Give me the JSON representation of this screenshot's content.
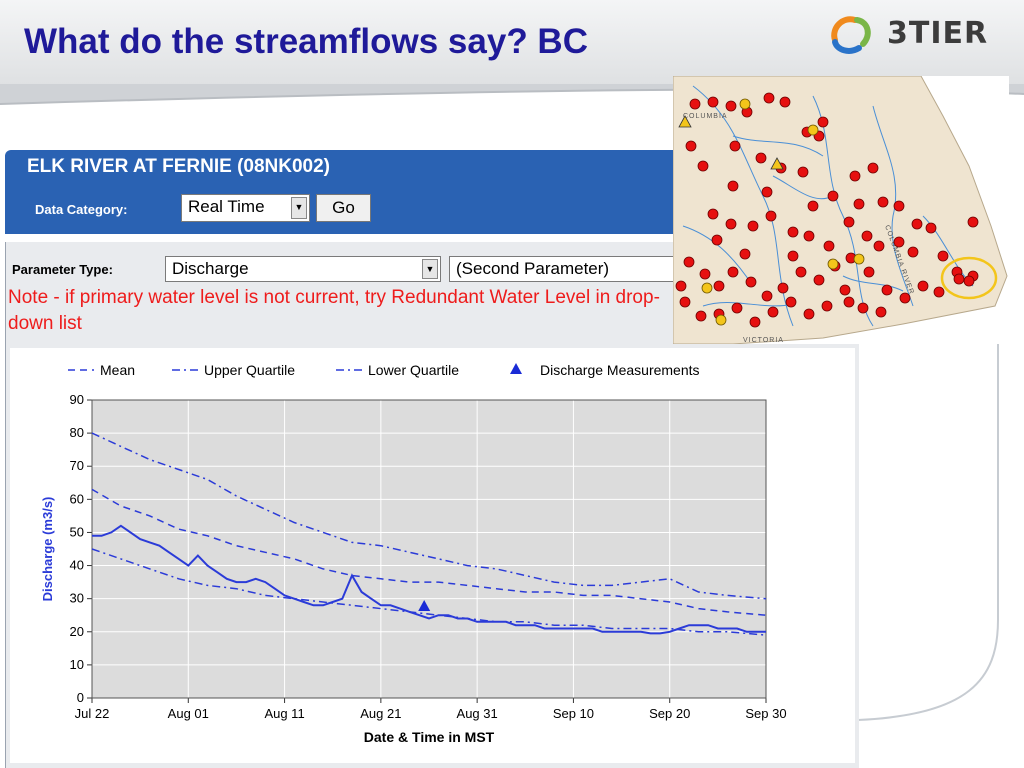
{
  "slide": {
    "title": "What do the streamflows say?  BC",
    "logo_text": "3TIER"
  },
  "station": {
    "name": "ELK RIVER AT FERNIE (08NK002)",
    "data_category_label": "Data Category:",
    "data_category_value": "Real Time",
    "go_label": "Go",
    "parameter_type_label": "Parameter Type:",
    "parameter_value": "Discharge",
    "second_parameter_value": "(Second Parameter)",
    "note": "Note - if primary water level is not current, try Redundant Water Level in drop-down list"
  },
  "map": {
    "labels": [
      "COLUMBIA",
      "VICTORIA",
      "COLUMBIA RIVER"
    ],
    "colors": {
      "land": "#efe4d0",
      "water": "#4a8fd6",
      "station": "#e61010",
      "highlight": "#f3c51b"
    }
  },
  "chart_data": {
    "type": "line",
    "title": "",
    "xlabel": "Date & Time in MST",
    "ylabel": "Discharge (m3/s)",
    "ylim": [
      0,
      90
    ],
    "yticks": [
      0,
      10,
      20,
      30,
      40,
      50,
      60,
      70,
      80,
      90
    ],
    "xticks": [
      "Jul 22",
      "Aug 01",
      "Aug 11",
      "Aug 21",
      "Aug 31",
      "Sep 10",
      "Sep 20",
      "Sep 30"
    ],
    "xlim_days": [
      0,
      70
    ],
    "grid": true,
    "legend_position": "top",
    "legend": [
      "Mean",
      "Upper Quartile",
      "Lower Quartile",
      "Discharge Measurements"
    ],
    "series": [
      {
        "name": "Mean",
        "style": "dashed",
        "color": "#2b3bd8",
        "x": [
          0,
          3,
          6,
          9,
          12,
          15,
          18,
          21,
          24,
          27,
          30,
          33,
          36,
          39,
          42,
          45,
          48,
          51,
          54,
          57,
          60,
          63,
          66,
          70
        ],
        "y": [
          63,
          58,
          55,
          51,
          49,
          46,
          44,
          42,
          39,
          37,
          36,
          35,
          35,
          34,
          33,
          32,
          32,
          31,
          31,
          30,
          29,
          27,
          26,
          25
        ]
      },
      {
        "name": "Upper Quartile",
        "style": "dashdot",
        "color": "#2b3bd8",
        "x": [
          0,
          3,
          6,
          9,
          12,
          15,
          18,
          21,
          24,
          27,
          30,
          33,
          36,
          39,
          42,
          45,
          48,
          51,
          54,
          57,
          60,
          63,
          66,
          70
        ],
        "y": [
          80,
          76,
          72,
          69,
          66,
          61,
          57,
          53,
          50,
          47,
          46,
          44,
          42,
          40,
          39,
          37,
          35,
          34,
          34,
          35,
          36,
          32,
          31,
          30
        ]
      },
      {
        "name": "Lower Quartile",
        "style": "dashdot",
        "color": "#2b3bd8",
        "x": [
          0,
          3,
          6,
          9,
          12,
          15,
          18,
          21,
          24,
          27,
          30,
          33,
          36,
          39,
          42,
          45,
          48,
          51,
          54,
          57,
          60,
          63,
          66,
          70
        ],
        "y": [
          45,
          42,
          39,
          36,
          34,
          33,
          31,
          30,
          29,
          28,
          27,
          26,
          25,
          24,
          23,
          23,
          22,
          22,
          21,
          21,
          21,
          20,
          20,
          19
        ]
      },
      {
        "name": "Discharge",
        "style": "solid",
        "color": "#2b3bd8",
        "x": [
          0,
          1,
          2,
          3,
          4,
          5,
          6,
          7,
          8,
          9,
          10,
          11,
          12,
          13,
          14,
          15,
          16,
          17,
          18,
          19,
          20,
          21,
          22,
          23,
          24,
          25,
          26,
          27,
          28,
          29,
          30,
          31,
          32,
          33,
          34,
          35,
          36,
          37,
          38,
          39,
          40,
          41,
          42,
          43,
          44,
          45,
          46,
          47,
          48,
          49,
          50,
          51,
          52,
          53,
          54,
          55,
          56,
          57,
          58,
          59,
          60,
          61,
          62,
          63,
          64,
          65,
          66,
          67,
          68,
          69,
          70
        ],
        "y": [
          49,
          49,
          50,
          52,
          50,
          48,
          47,
          46,
          44,
          42,
          40,
          43,
          40,
          38,
          36,
          35,
          35,
          36,
          35,
          33,
          31,
          30,
          29,
          28,
          28,
          29,
          30,
          37,
          32,
          30,
          28,
          28,
          27,
          26,
          25,
          24,
          25,
          25,
          24,
          24,
          23,
          23,
          23,
          23,
          22,
          22,
          22,
          21,
          21,
          21,
          21,
          21,
          21,
          20,
          20,
          20,
          20,
          20,
          19.5,
          19.5,
          20,
          21,
          22,
          22,
          22,
          21,
          21,
          21,
          20,
          20,
          20
        ]
      },
      {
        "name": "Discharge Measurements",
        "style": "marker",
        "color": "#1a2bd6",
        "x": [
          34.5
        ],
        "y": [
          27.5
        ]
      }
    ]
  }
}
